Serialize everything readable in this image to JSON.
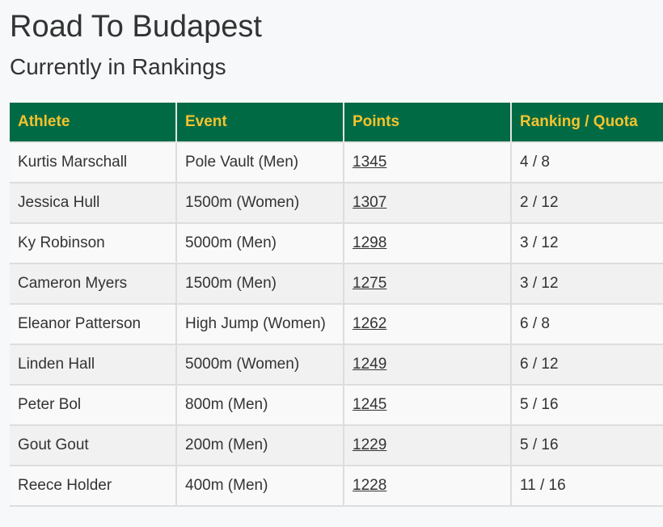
{
  "header": {
    "title": "Road To Budapest",
    "subtitle": "Currently in Rankings"
  },
  "table": {
    "columns": [
      "Athlete",
      "Event",
      "Points",
      "Ranking / Quota"
    ],
    "rows": [
      [
        "Kurtis Marschall",
        "Pole Vault (Men)",
        1345,
        "4 / 8"
      ],
      [
        "Jessica Hull",
        "1500m (Women)",
        1307,
        "2 / 12"
      ],
      [
        "Ky Robinson",
        "5000m (Men)",
        1298,
        "3 / 12"
      ],
      [
        "Cameron Myers",
        "1500m (Men)",
        1275,
        "3 / 12"
      ],
      [
        "Eleanor Patterson",
        "High Jump (Women)",
        1262,
        "6 / 8"
      ],
      [
        "Linden Hall",
        "5000m (Women)",
        1249,
        "6 / 12"
      ],
      [
        "Peter Bol",
        "800m (Men)",
        1245,
        "5 / 16"
      ],
      [
        "Gout Gout",
        "200m (Men)",
        1229,
        "5 / 16"
      ],
      [
        "Reece Holder",
        "400m (Men)",
        1228,
        "11 / 16"
      ]
    ]
  }
}
